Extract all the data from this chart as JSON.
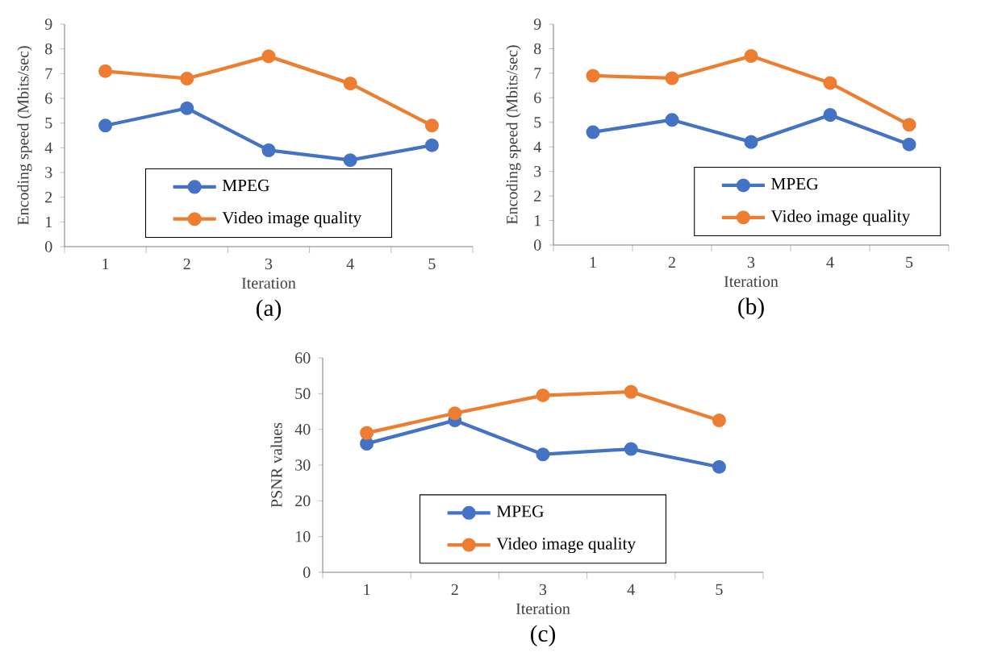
{
  "chart_data": [
    {
      "type": "line",
      "xlabel": "Iteration",
      "ylabel": "Encoding speed (Mbits/sec)",
      "categories": [
        "1",
        "2",
        "3",
        "4",
        "5"
      ],
      "ylim": [
        0,
        9
      ],
      "yticks": [
        0,
        1,
        2,
        3,
        4,
        5,
        6,
        7,
        8,
        9
      ],
      "marker": "circle",
      "legend": "bottom",
      "annotations": [
        "(a)"
      ],
      "series": [
        {
          "name": "MPEG",
          "color": "#4472c4",
          "values": [
            4.9,
            5.6,
            3.9,
            3.5,
            4.1
          ]
        },
        {
          "name": "Video image quality",
          "color": "#ed7d31",
          "values": [
            7.1,
            6.8,
            7.7,
            6.6,
            4.9
          ]
        }
      ]
    },
    {
      "type": "line",
      "xlabel": "Iteration",
      "ylabel": "Encoding speed (Mbits/sec)",
      "categories": [
        "1",
        "2",
        "3",
        "4",
        "5"
      ],
      "ylim": [
        0,
        9
      ],
      "yticks": [
        0,
        1,
        2,
        3,
        4,
        5,
        6,
        7,
        8,
        9
      ],
      "marker": "circle",
      "legend": "bottom right",
      "annotations": [
        "(b)"
      ],
      "series": [
        {
          "name": "MPEG",
          "color": "#4472c4",
          "values": [
            4.6,
            5.1,
            4.2,
            5.3,
            4.1
          ]
        },
        {
          "name": "Video image quality",
          "color": "#ed7d31",
          "values": [
            6.9,
            6.8,
            7.7,
            6.6,
            4.9
          ]
        }
      ]
    },
    {
      "type": "line",
      "xlabel": "Iteration",
      "ylabel": "PSNR values",
      "categories": [
        "1",
        "2",
        "3",
        "4",
        "5"
      ],
      "ylim": [
        0,
        60
      ],
      "yticks": [
        0,
        10,
        20,
        30,
        40,
        50,
        60
      ],
      "marker": "circle",
      "legend": "bottom",
      "annotations": [
        "(c)"
      ],
      "series": [
        {
          "name": "MPEG",
          "color": "#4472c4",
          "values": [
            36,
            42.5,
            33,
            34.5,
            29.5
          ]
        },
        {
          "name": "Video image quality",
          "color": "#ed7d31",
          "values": [
            39,
            44.5,
            49.5,
            50.5,
            42.5
          ]
        }
      ]
    }
  ]
}
